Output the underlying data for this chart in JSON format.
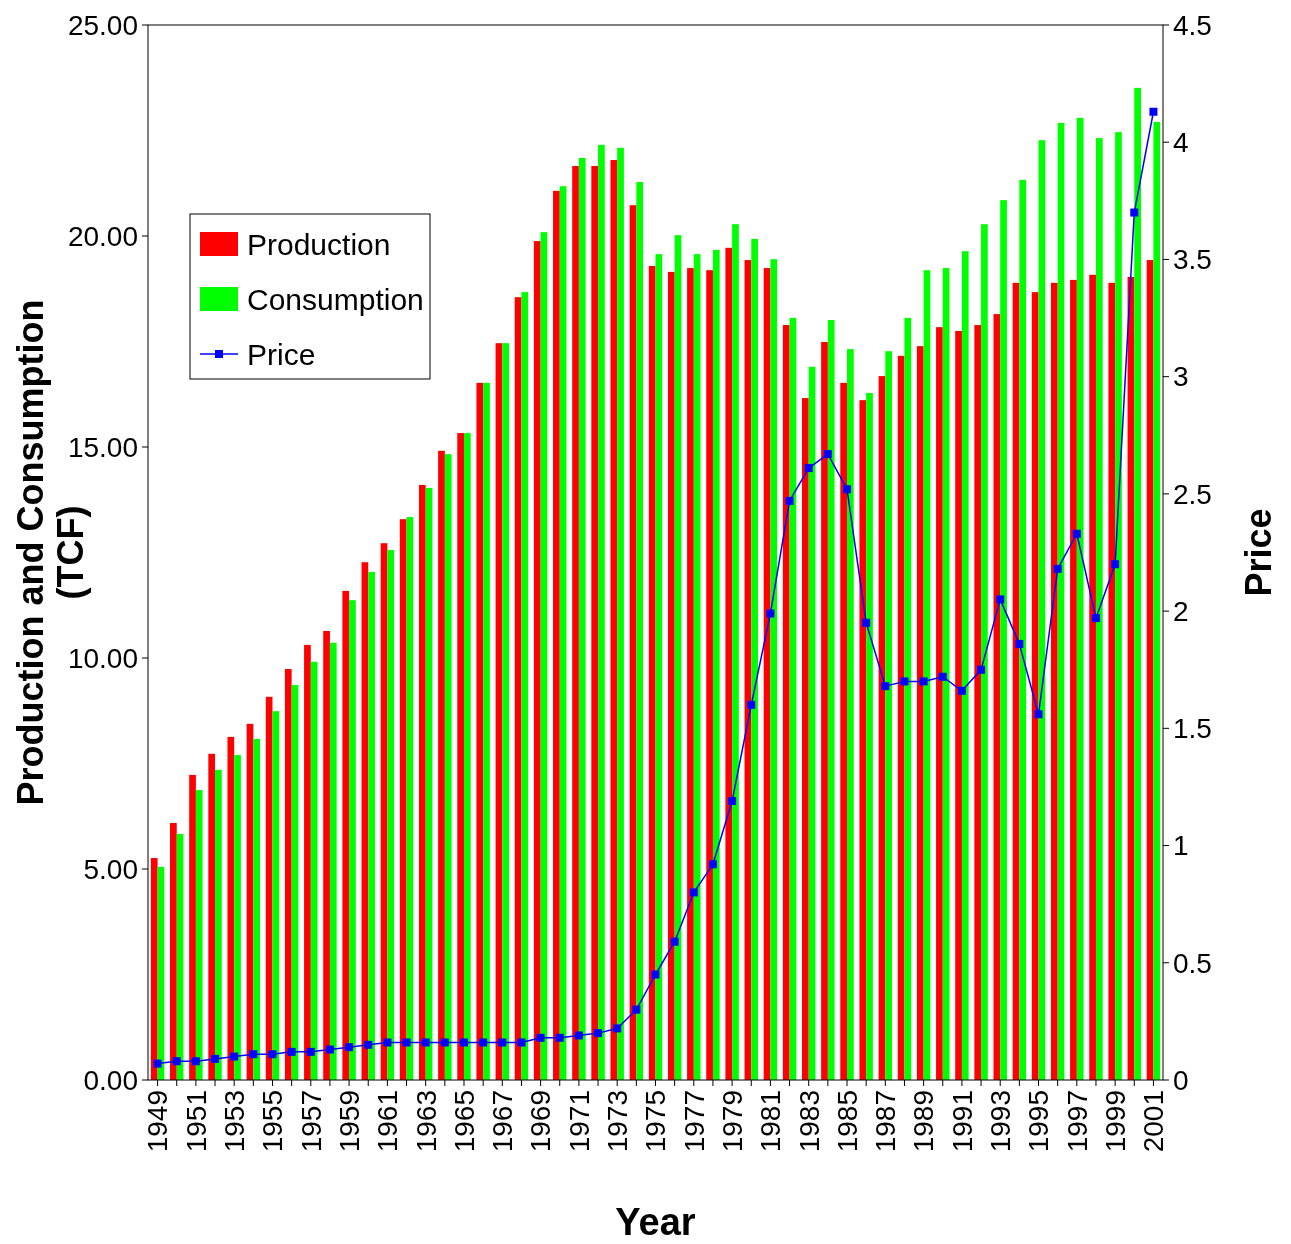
{
  "chart_data": {
    "type": "bar",
    "xlabel": "Year",
    "ylabel": "Production and Consumption (TCF)",
    "y2label": "Price",
    "categories": [
      "1949",
      null,
      "1951",
      null,
      "1953",
      null,
      "1955",
      null,
      "1957",
      null,
      "1959",
      null,
      "1961",
      null,
      "1963",
      null,
      "1965",
      null,
      "1967",
      null,
      "1969",
      null,
      "1971",
      null,
      "1973",
      null,
      "1975",
      null,
      "1977",
      null,
      "1979",
      null,
      "1981",
      null,
      "1983",
      null,
      "1985",
      null,
      "1987",
      null,
      "1989",
      null,
      "1991",
      null,
      "1993",
      null,
      "1995",
      null,
      "1997",
      null,
      "1999",
      null,
      "2001"
    ],
    "series": [
      {
        "name": "Production",
        "color": "#ff0000",
        "values": [
          5.26,
          6.09,
          7.23,
          7.73,
          8.13,
          8.44,
          9.08,
          9.74,
          10.31,
          10.64,
          11.59,
          12.27,
          12.72,
          13.29,
          14.1,
          14.91,
          15.33,
          16.52,
          17.46,
          18.55,
          19.88,
          21.07,
          21.66,
          21.66,
          21.8,
          20.73,
          19.29,
          19.15,
          19.24,
          19.19,
          19.72,
          19.43,
          19.24,
          17.89,
          16.16,
          17.49,
          16.52,
          16.11,
          16.68,
          17.16,
          17.39,
          17.84,
          17.75,
          17.89,
          18.15,
          18.89,
          18.67,
          18.89,
          18.96,
          19.08,
          18.89,
          19.03,
          19.43
        ]
      },
      {
        "name": "Consumption",
        "color": "#00ff00",
        "values": [
          5.05,
          5.83,
          6.87,
          7.35,
          7.7,
          8.08,
          8.74,
          9.36,
          9.91,
          10.36,
          11.37,
          12.04,
          12.56,
          13.34,
          14.03,
          14.83,
          15.33,
          16.52,
          17.46,
          18.67,
          20.09,
          21.18,
          21.85,
          22.16,
          22.09,
          21.28,
          19.57,
          20.02,
          19.57,
          19.67,
          20.28,
          19.93,
          19.45,
          18.06,
          16.9,
          18.01,
          17.32,
          16.28,
          17.27,
          18.06,
          19.19,
          19.24,
          19.64,
          20.28,
          20.85,
          21.33,
          22.27,
          22.68,
          22.8,
          22.32,
          22.46,
          23.51,
          22.7
        ]
      },
      {
        "name": "Price",
        "type": "line",
        "axis": "y2",
        "color": "#0000ff",
        "marker": "square",
        "values": [
          0.07,
          0.08,
          0.08,
          0.09,
          0.1,
          0.11,
          0.11,
          0.12,
          0.12,
          0.13,
          0.14,
          0.15,
          0.16,
          0.16,
          0.16,
          0.16,
          0.16,
          0.16,
          0.16,
          0.16,
          0.18,
          0.18,
          0.19,
          0.2,
          0.22,
          0.3,
          0.45,
          0.59,
          0.8,
          0.92,
          1.19,
          1.6,
          1.99,
          2.47,
          2.61,
          2.67,
          2.52,
          1.95,
          1.68,
          1.7,
          1.7,
          1.72,
          1.66,
          1.75,
          2.05,
          1.86,
          1.56,
          2.18,
          2.33,
          1.97,
          2.2,
          3.7,
          4.13
        ]
      }
    ],
    "ylim": [
      0,
      25
    ],
    "yticks": [
      {
        "value": 0,
        "label": "0.00"
      },
      {
        "value": 5,
        "label": "5.00"
      },
      {
        "value": 10,
        "label": "10.00"
      },
      {
        "value": 15,
        "label": "15.00"
      },
      {
        "value": 20,
        "label": "20.00"
      },
      {
        "value": 25,
        "label": "25.00"
      }
    ],
    "y2lim": [
      0,
      4.5
    ],
    "y2ticks": [
      0,
      0.5,
      1,
      1.5,
      2,
      2.5,
      3,
      3.5,
      4,
      4.5
    ],
    "legend": "top left",
    "grid": false
  }
}
